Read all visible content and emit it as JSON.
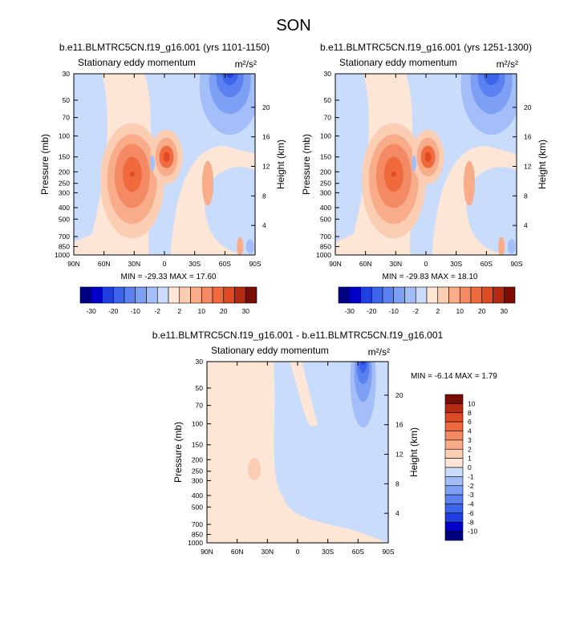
{
  "page": {
    "title": "SON"
  },
  "units_label": "m²/s²",
  "colors": {
    "neg": [
      "#000080",
      "#0000c8",
      "#1f3fe0",
      "#3c64ec",
      "#5b80f0",
      "#7d9ff4",
      "#a3bef8",
      "#cadcfc"
    ],
    "pos": [
      "#fde6d6",
      "#fbcdb2",
      "#f8ac8a",
      "#f48a63",
      "#f06a3d",
      "#e04a22",
      "#b52a10",
      "#7a0d05"
    ]
  },
  "chart_data": [
    {
      "type": "heatmap",
      "id": "panel-1",
      "title": "b.e11.BLMTRC5CN.f19_g16.001 (yrs 1101-1150)",
      "subtitle": "Stationary eddy momentum",
      "units": "m²/s²",
      "xlabel": "",
      "ylabel": "Pressure (mb)",
      "ylabel_right": "Height (km)",
      "x_ticks": [
        "90N",
        "60N",
        "30N",
        "0",
        "30S",
        "60S",
        "90S"
      ],
      "y_ticks": [
        "30",
        "50",
        "70",
        "100",
        "150",
        "200",
        "250",
        "300",
        "400",
        "500",
        "700",
        "850",
        "1000"
      ],
      "y_ticks_right": [
        "20",
        "16",
        "12",
        "8",
        "4"
      ],
      "min": -29.33,
      "max": 17.6,
      "minmax_text": "MIN = -29.33  MAX = 17.60",
      "levels": [
        "-30",
        "-20",
        "-10",
        "-2",
        "2",
        "10",
        "20",
        "30"
      ],
      "features": [
        {
          "lat": 32,
          "p": 210,
          "value": 17.6
        },
        {
          "lat": -2,
          "p": 150,
          "value": 15.0
        },
        {
          "lat": -65,
          "p": 35,
          "value": -29.3
        }
      ]
    },
    {
      "type": "heatmap",
      "id": "panel-2",
      "title": "b.e11.BLMTRC5CN.f19_g16.001 (yrs 1251-1300)",
      "subtitle": "Stationary eddy momentum",
      "units": "m²/s²",
      "xlabel": "",
      "ylabel": "Pressure (mb)",
      "ylabel_right": "Height (km)",
      "x_ticks": [
        "90N",
        "60N",
        "30N",
        "0",
        "30S",
        "60S",
        "90S"
      ],
      "y_ticks": [
        "30",
        "50",
        "70",
        "100",
        "150",
        "200",
        "250",
        "300",
        "400",
        "500",
        "700",
        "850",
        "1000"
      ],
      "y_ticks_right": [
        "20",
        "16",
        "12",
        "8",
        "4"
      ],
      "min": -29.83,
      "max": 18.1,
      "minmax_text": "MIN = -29.83  MAX = 18.10",
      "levels": [
        "-30",
        "-20",
        "-10",
        "-2",
        "2",
        "10",
        "20",
        "30"
      ],
      "features": [
        {
          "lat": 32,
          "p": 210,
          "value": 18.1
        },
        {
          "lat": -2,
          "p": 150,
          "value": 15.0
        },
        {
          "lat": -65,
          "p": 35,
          "value": -29.8
        }
      ]
    },
    {
      "type": "heatmap",
      "id": "panel-diff",
      "title": "b.e11.BLMTRC5CN.f19_g16.001 - b.e11.BLMTRC5CN.f19_g16.001",
      "subtitle": "Stationary eddy momentum",
      "units": "m²/s²",
      "xlabel": "",
      "ylabel": "Pressure (mb)",
      "ylabel_right": "Height (km)",
      "x_ticks": [
        "90N",
        "60N",
        "30N",
        "0",
        "30S",
        "60S",
        "90S"
      ],
      "y_ticks": [
        "30",
        "50",
        "70",
        "100",
        "150",
        "200",
        "250",
        "300",
        "400",
        "500",
        "700",
        "850",
        "1000"
      ],
      "y_ticks_right": [
        "20",
        "16",
        "12",
        "8",
        "4"
      ],
      "min": -6.14,
      "max": 1.79,
      "minmax_text": "MIN = -6.14  MAX =  1.79",
      "levels": [
        "10",
        "8",
        "6",
        "4",
        "3",
        "2",
        "1",
        "0",
        "-1",
        "-2",
        "-3",
        "-4",
        "-6",
        "-8",
        "-10"
      ],
      "features": [
        {
          "lat": -65,
          "p": 35,
          "value": -6.14
        },
        {
          "lat": 43,
          "p": 240,
          "value": 1.79
        }
      ]
    }
  ]
}
